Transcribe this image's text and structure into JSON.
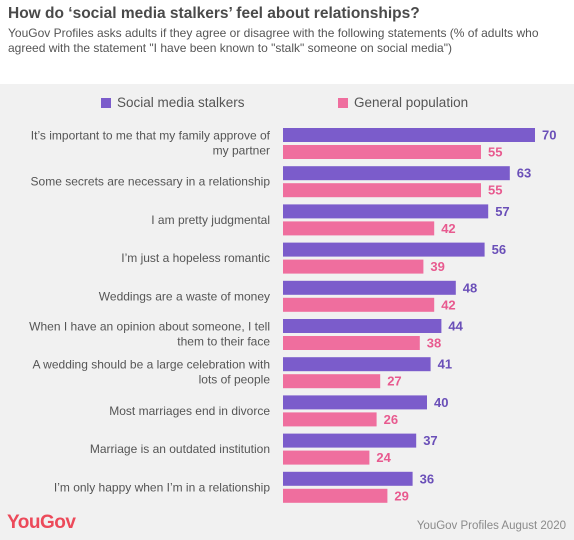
{
  "header": {
    "title": "How do ‘social media stalkers’ feel about relationships?",
    "subtitle": "YouGov Profiles asks adults if they agree or disagree with the following statements (% of adults who agreed with the statement \"I have been known to \"stalk\" someone on social media\")"
  },
  "footer": {
    "logo": "YouGov",
    "source": "YouGov Profiles August 2020"
  },
  "colors": {
    "stalkers": "#7b5ccb",
    "general": "#ef6e9e",
    "stalkers_label": "#6a4fb8",
    "general_label": "#e85a8f",
    "category_text": "#555555"
  },
  "chart_data": {
    "type": "bar",
    "orientation": "horizontal",
    "title": "How do ‘social media stalkers’ feel about relationships?",
    "legend_position": "top",
    "grid": false,
    "xlim": [
      0,
      100
    ],
    "categories": [
      "It’s important to me that my family approve of my partner",
      "Some secrets are necessary in a relationship",
      "I am pretty judgmental",
      "I’m just a hopeless romantic",
      "Weddings are a waste of money",
      "When I have an opinion about someone, I tell them to their face",
      "A wedding should be a large celebration with lots of people",
      "Most marriages end in divorce",
      "Marriage is an outdated institution",
      "I’m only happy when I’m in a relationship"
    ],
    "series": [
      {
        "name": "Social media stalkers",
        "values": [
          70,
          63,
          57,
          56,
          48,
          44,
          41,
          40,
          37,
          36
        ]
      },
      {
        "name": "General population",
        "values": [
          55,
          55,
          42,
          39,
          42,
          38,
          27,
          26,
          24,
          29
        ]
      }
    ]
  }
}
